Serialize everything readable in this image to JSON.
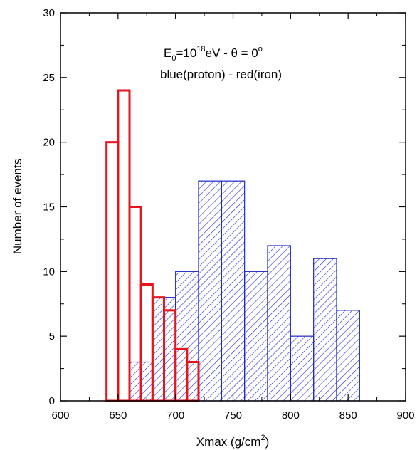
{
  "chart_data": {
    "type": "bar",
    "annotation": {
      "energy_prefix": "E",
      "energy_sub": "0",
      "energy_mid": "=10",
      "energy_sup": "18",
      "energy_suffix": "eV - θ = 0",
      "degree_sup": "o",
      "line2": "blue(proton) - red(iron)"
    },
    "xlabel": {
      "base": "Xmax (g/cm",
      "sup": "2",
      "close": ")"
    },
    "ylabel": "Number of events",
    "xlim": [
      600,
      900
    ],
    "ylim": [
      0,
      30
    ],
    "xticks": [
      600,
      650,
      700,
      750,
      800,
      850,
      900
    ],
    "yticks": [
      0,
      5,
      10,
      15,
      20,
      25,
      30
    ],
    "grid": false,
    "series": [
      {
        "key": "proton",
        "color": "#1f28c8",
        "style": "hatched",
        "bin_width": 20,
        "bins": [
          {
            "x": 660,
            "value": 3
          },
          {
            "x": 680,
            "value": 8
          },
          {
            "x": 700,
            "value": 10
          },
          {
            "x": 720,
            "value": 17
          },
          {
            "x": 740,
            "value": 17
          },
          {
            "x": 760,
            "value": 10
          },
          {
            "x": 780,
            "value": 12
          },
          {
            "x": 800,
            "value": 5
          },
          {
            "x": 820,
            "value": 11
          },
          {
            "x": 840,
            "value": 7
          }
        ]
      },
      {
        "key": "iron",
        "color": "#e8141c",
        "style": "outline",
        "bin_width": 10,
        "bins": [
          {
            "x": 640,
            "value": 20
          },
          {
            "x": 650,
            "value": 24
          },
          {
            "x": 660,
            "value": 15
          },
          {
            "x": 670,
            "value": 9
          },
          {
            "x": 680,
            "value": 8
          },
          {
            "x": 690,
            "value": 7
          },
          {
            "x": 700,
            "value": 4
          },
          {
            "x": 710,
            "value": 3
          }
        ]
      }
    ]
  }
}
